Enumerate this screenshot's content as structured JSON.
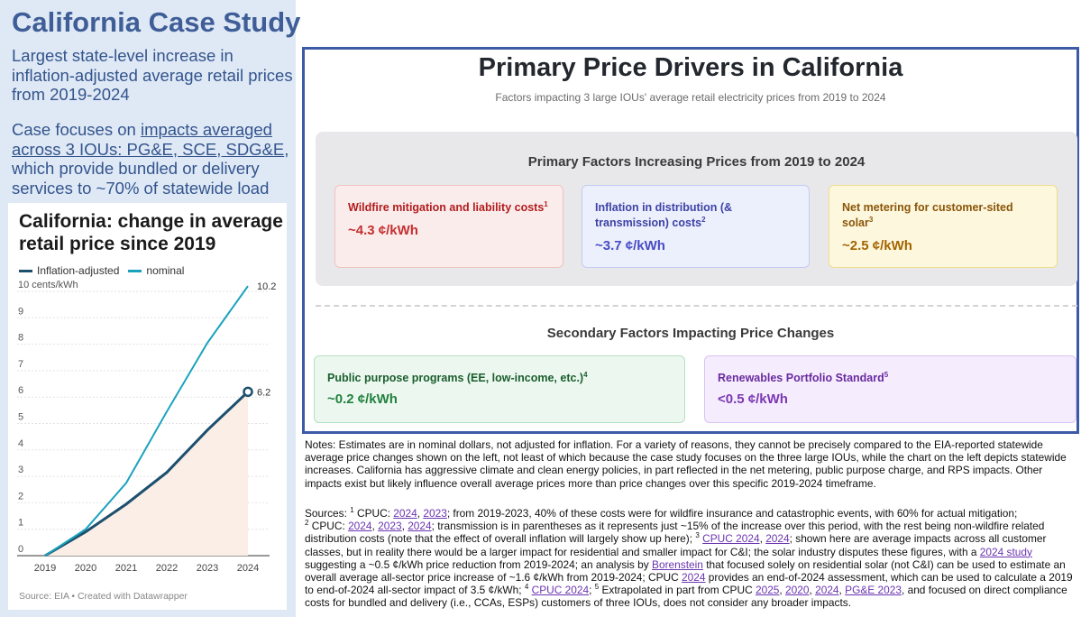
{
  "left": {
    "title": "California Case Study",
    "intro": "Largest state-level increase in inflation-adjusted average retail prices from 2019-2024",
    "case_prefix": "Case focuses on ",
    "case_link": "impacts averaged across 3 IOUs: PG&E, SCE, SDG&E",
    "case_suffix": ", which provide bundled or delivery services to ~70% of statewide load"
  },
  "chart_data": {
    "type": "line",
    "title": "California: change in average retail price since 2019",
    "ylabel": "cents/kWh",
    "x": [
      2019,
      2020,
      2021,
      2022,
      2023,
      2024
    ],
    "xticks": [
      "2019",
      "2020",
      "2021",
      "2022",
      "2023",
      "2024"
    ],
    "yticks": [
      "0",
      "1",
      "2",
      "3",
      "4",
      "5",
      "6",
      "7",
      "8",
      "9",
      "10 cents/kWh"
    ],
    "ylim": [
      0,
      10.5
    ],
    "series": [
      {
        "name": "Inflation-adjusted",
        "color": "#1d4f6e",
        "values": [
          0,
          0.9,
          1.95,
          3.15,
          4.75,
          6.2
        ],
        "end_label": "6.2",
        "area": true
      },
      {
        "name": "nominal",
        "color": "#1aa2bd",
        "values": [
          0,
          1.0,
          2.75,
          5.45,
          8.05,
          10.2
        ],
        "end_label": "10.2"
      }
    ],
    "source": "Source: EIA • Created with Datawrapper"
  },
  "frame": {
    "title": "Primary Price Drivers in California",
    "subtitle": "Factors impacting 3 large IOUs' average retail electricity prices from 2019 to 2024",
    "primary_heading": "Primary Factors Increasing Prices from 2019 to 2024",
    "secondary_heading": "Secondary Factors Impacting Price Changes",
    "primary": [
      {
        "label": "Wildfire mitigation and liability costs",
        "sup": "1",
        "value": "~4.3 ¢/kWh"
      },
      {
        "label": "Inflation in distribution (& transmission) costs",
        "sup": "2",
        "value": "~3.7 ¢/kWh"
      },
      {
        "label": "Net metering for customer-sited solar",
        "sup": "3",
        "value": "~2.5 ¢/kWh"
      }
    ],
    "secondary": [
      {
        "label": "Public purpose programs (EE, low-income, etc.)",
        "sup": "4",
        "value": "~0.2 ¢/kWh"
      },
      {
        "label": "Renewables Portfolio Standard",
        "sup": "5",
        "value": "<0.5 ¢/kWh"
      }
    ]
  },
  "notes": "Notes: Estimates are in nominal dollars, not adjusted for inflation. For a variety of reasons, they cannot be precisely compared to the EIA-reported statewide average price changes shown on the left, not least of which because the case study focuses on the three large IOUs, while the chart on the left depicts statewide increases. California has aggressive climate and clean energy policies, in part reflected in the net metering, public purpose charge, and RPS impacts. Other impacts exist but likely influence overall average prices more than price changes over this specific 2019-2024 timeframe.",
  "sources": {
    "s0": "Sources: ",
    "n1": "1",
    "s1": " CPUC: ",
    "l1": "2024",
    "s2": ", ",
    "l2": "2023",
    "s3": "; from 2019-2023, 40% of these costs were for wildfire insurance and catastrophic events, with 60% for actual mitigation;",
    "n2": "2",
    "s4": " CPUC: ",
    "l3": "2024",
    "s5": ", ",
    "l4": "2023",
    "s6": ", ",
    "l5": "2024",
    "s7": "; transmission is in parentheses as it represents just ~15% of the increase over this period, with the rest being non-wildfire related distribution costs (note that the effect of overall inflation will largely show up here); ",
    "n3": "3",
    "s8": " ",
    "l6": "CPUC 2024",
    "s9": ", ",
    "l7": "2024",
    "s10": "; shown here are average impacts across all customer classes, but in reality there would be a larger impact for residential and smaller impact for C&I; the solar industry disputes these figures, with a ",
    "l8": "2024 study",
    "s11": " suggesting a ~0.5 ¢/kWh price reduction from 2019-2024; an analysis by ",
    "l9": "Borenstein",
    "s12": " that focused solely on residential solar (not C&I) can be used to estimate an overall average all-sector price increase of ~1.6 ¢/kWh from 2019-2024; CPUC ",
    "l10": "2024",
    "s13": " provides an end-of-2024 assessment, which can be used to calculate a 2019 to end-of-2024 all-sector impact of 3.5 ¢/kWh; ",
    "n4": "4",
    "s14": " ",
    "l11": "CPUC 2024",
    "s15": "; ",
    "n5": "5",
    "s16": " Extrapolated in part from CPUC ",
    "l12": "2025",
    "s17": ", ",
    "l13": "2020",
    "s18": ", ",
    "l14": "2024",
    "s19": ", ",
    "l15": "PG&E 2023",
    "s20": ", and focused on direct compliance costs for bundled and delivery (i.e., CCAs, ESPs) customers of three IOUs, does not consider any broader impacts."
  },
  "colors": {
    "title_blue": "#3f5e97",
    "frame_border": "#3d5aa6",
    "link_purple": "#6b35b0"
  }
}
